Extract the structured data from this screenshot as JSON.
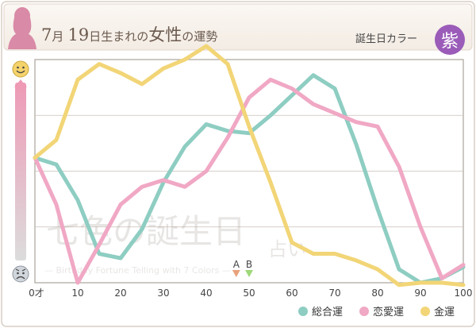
{
  "header": {
    "date_month": "7",
    "date_month_unit": "月",
    "date_day": "19",
    "date_suffix": "日生まれの",
    "subject": "女性",
    "fortune_label": "の運勢",
    "birthday_color_label": "誕生日カラー",
    "birthday_color_glyph": "紫",
    "birthday_color": "#9a5cb8"
  },
  "watermark": {
    "main": "七色の誕生日",
    "sub": "占い",
    "tagline": "— Birthday Fortune Telling with 7 Colors —"
  },
  "mood_icons": {
    "top": "smiling-face-icon",
    "bottom": "worried-face-icon"
  },
  "chart_data": {
    "type": "line",
    "x_ticks": [
      "0才",
      "10",
      "20",
      "30",
      "40",
      "50",
      "60",
      "70",
      "80",
      "90",
      "100"
    ],
    "xlim": [
      0,
      100
    ],
    "ylim": [
      0,
      100
    ],
    "grid": true,
    "legend_position": "bottom-right",
    "markers": [
      {
        "label": "A",
        "x": 47,
        "color": "#e8a27c"
      },
      {
        "label": "B",
        "x": 50,
        "color": "#9fd87a"
      }
    ],
    "series": [
      {
        "name": "総合運",
        "color": "#8ecdc2",
        "x": [
          0,
          5,
          10,
          15,
          20,
          25,
          30,
          35,
          40,
          45,
          50,
          55,
          60,
          65,
          70,
          75,
          80,
          85,
          90,
          95,
          100
        ],
        "y": [
          56,
          53,
          37,
          13,
          11,
          24,
          45,
          61,
          71,
          68,
          67,
          75,
          84,
          93,
          87,
          62,
          33,
          6,
          0,
          2,
          7
        ]
      },
      {
        "name": "恋愛運",
        "color": "#f0a8c4",
        "x": [
          0,
          5,
          10,
          15,
          20,
          25,
          30,
          35,
          40,
          45,
          50,
          55,
          60,
          65,
          70,
          75,
          80,
          85,
          90,
          95,
          100
        ],
        "y": [
          56,
          35,
          0,
          17,
          35,
          43,
          46,
          43,
          50,
          65,
          83,
          91,
          87,
          80,
          76,
          72,
          70,
          52,
          25,
          2,
          8
        ]
      },
      {
        "name": "金運",
        "color": "#f2d577",
        "x": [
          0,
          5,
          10,
          15,
          20,
          25,
          30,
          35,
          40,
          45,
          50,
          55,
          60,
          65,
          70,
          75,
          80,
          85,
          90,
          95,
          100
        ],
        "y": [
          56,
          64,
          91,
          98,
          94,
          89,
          96,
          100,
          106,
          98,
          70,
          45,
          18,
          13,
          13,
          10,
          6,
          -1,
          0,
          0,
          -1
        ]
      }
    ]
  }
}
